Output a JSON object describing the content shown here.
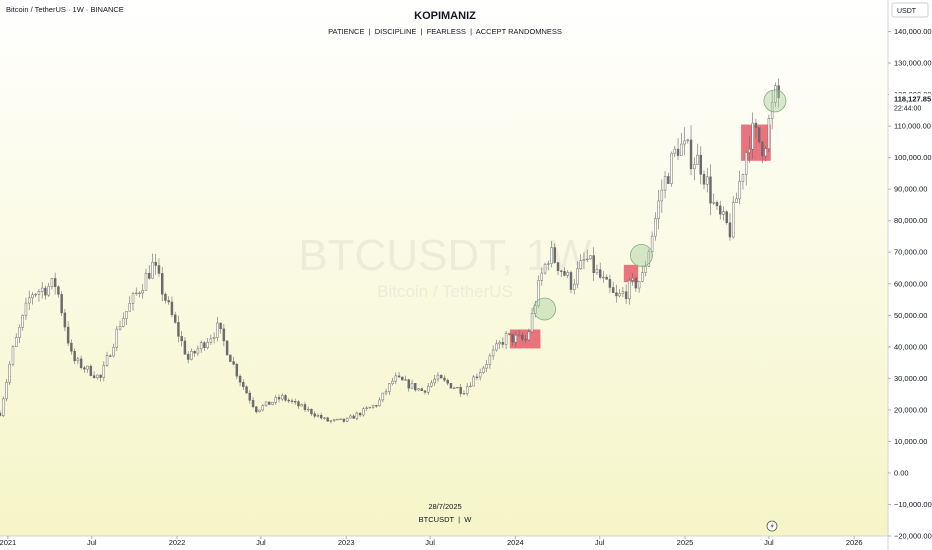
{
  "header": {
    "symbol_line": "Bitcoin / TetherUS · 1W · BINANCE",
    "title": "KOPIMANIZ",
    "subtitle": "PATIENCE  |  DISCIPLINE  |  FEARLESS  |  ACCEPT RANDOMNESS"
  },
  "watermark": {
    "main": "BTCUSDT, 1W",
    "sub": "Bitcoin / TetherUS"
  },
  "footer": {
    "date": "28/7/2025",
    "symbol": "BTCUSDT  |  W"
  },
  "price_scale": {
    "currency": "USDT",
    "current_price": "118,127.85",
    "countdown": "22:44:00"
  },
  "colors": {
    "background_top": "#ffffff",
    "background_bottom": "#f5f5c8",
    "candle": "#6a6a6a",
    "zone": "#e85a6a",
    "circle": "#a8cfa0",
    "price_label_bg": "#ffffff"
  },
  "icons": {
    "bottom_right": "lightning-icon"
  },
  "chart_data": {
    "type": "candlestick",
    "title": "KOPIMANIZ",
    "subtitle": "PATIENCE  |  DISCIPLINE  |  FEARLESS  |  ACCEPT RANDOMNESS",
    "interval": "1W",
    "exchange": "BINANCE",
    "ylim": [
      -20000,
      150000
    ],
    "xlim": [
      "2020-12-15",
      "2026-03-15"
    ],
    "y_ticks": [
      {
        "v": 140000,
        "label": "140,000.00"
      },
      {
        "v": 130000,
        "label": "130,000.00"
      },
      {
        "v": 120000,
        "label": "120,000.00"
      },
      {
        "v": 110000,
        "label": "110,000.00"
      },
      {
        "v": 100000,
        "label": "100,000.00"
      },
      {
        "v": 90000,
        "label": "90,000.00"
      },
      {
        "v": 80000,
        "label": "80,000.00"
      },
      {
        "v": 70000,
        "label": "70,000.00"
      },
      {
        "v": 60000,
        "label": "60,000.00"
      },
      {
        "v": 50000,
        "label": "50,000.00"
      },
      {
        "v": 40000,
        "label": "40,000.00"
      },
      {
        "v": 30000,
        "label": "30,000.00"
      },
      {
        "v": 20000,
        "label": "20,000.00"
      },
      {
        "v": 10000,
        "label": "10,000.00"
      },
      {
        "v": 0,
        "label": "0.00"
      },
      {
        "v": -10000,
        "label": "−10,000.00"
      },
      {
        "v": -20000,
        "label": "−20,000.00"
      }
    ],
    "x_ticks": [
      {
        "date": "2021-01-01",
        "label": "2021"
      },
      {
        "date": "2021-07-01",
        "label": "Jul"
      },
      {
        "date": "2022-01-01",
        "label": "2022"
      },
      {
        "date": "2022-07-01",
        "label": "Jul"
      },
      {
        "date": "2023-01-01",
        "label": "2023"
      },
      {
        "date": "2023-07-01",
        "label": "Jul"
      },
      {
        "date": "2024-01-01",
        "label": "2024"
      },
      {
        "date": "2024-07-01",
        "label": "Jul"
      },
      {
        "date": "2025-01-01",
        "label": "2025"
      },
      {
        "date": "2025-07-01",
        "label": "Jul"
      },
      {
        "date": "2026-01-01",
        "label": "2026"
      }
    ],
    "close_path": [
      [
        "2020-12-15",
        19000
      ],
      [
        "2021-01-10",
        38000
      ],
      [
        "2021-02-20",
        57000
      ],
      [
        "2021-04-15",
        60000
      ],
      [
        "2021-05-20",
        36000
      ],
      [
        "2021-07-20",
        30000
      ],
      [
        "2021-09-01",
        48000
      ],
      [
        "2021-11-10",
        66000
      ],
      [
        "2021-12-30",
        46000
      ],
      [
        "2022-01-25",
        36000
      ],
      [
        "2022-03-30",
        46000
      ],
      [
        "2022-05-15",
        30000
      ],
      [
        "2022-06-20",
        20000
      ],
      [
        "2022-08-15",
        24000
      ],
      [
        "2022-10-15",
        19500
      ],
      [
        "2022-11-20",
        16500
      ],
      [
        "2022-12-30",
        16500
      ],
      [
        "2023-03-10",
        22000
      ],
      [
        "2023-04-15",
        30000
      ],
      [
        "2023-06-15",
        26000
      ],
      [
        "2023-07-15",
        30000
      ],
      [
        "2023-09-10",
        26000
      ],
      [
        "2023-10-25",
        34000
      ],
      [
        "2023-12-10",
        43000
      ],
      [
        "2024-01-25",
        42000
      ],
      [
        "2024-02-25",
        62000
      ],
      [
        "2024-03-15",
        70000
      ],
      [
        "2024-05-01",
        60000
      ],
      [
        "2024-06-01",
        68000
      ],
      [
        "2024-08-05",
        55000
      ],
      [
        "2024-10-01",
        62000
      ],
      [
        "2024-11-12",
        90000
      ],
      [
        "2024-12-17",
        104000
      ],
      [
        "2025-02-05",
        98000
      ],
      [
        "2025-03-10",
        82000
      ],
      [
        "2025-04-08",
        77000
      ],
      [
        "2025-05-21",
        108000
      ],
      [
        "2025-06-20",
        104000
      ],
      [
        "2025-07-14",
        119000
      ],
      [
        "2025-07-28",
        118127.85
      ]
    ],
    "highlight_zones": [
      {
        "x0": "2023-12-20",
        "x1": "2024-02-24",
        "y0": 39500,
        "y1": 45500
      },
      {
        "x0": "2024-08-22",
        "x1": "2024-09-22",
        "y0": 60500,
        "y1": 66000
      },
      {
        "x0": "2025-05-02",
        "x1": "2025-07-05",
        "y0": 99000,
        "y1": 110500
      }
    ],
    "marked_circles": [
      {
        "date": "2024-03-04",
        "price": 52000
      },
      {
        "date": "2024-09-29",
        "price": 69000
      },
      {
        "date": "2025-07-14",
        "price": 118000
      }
    ]
  }
}
